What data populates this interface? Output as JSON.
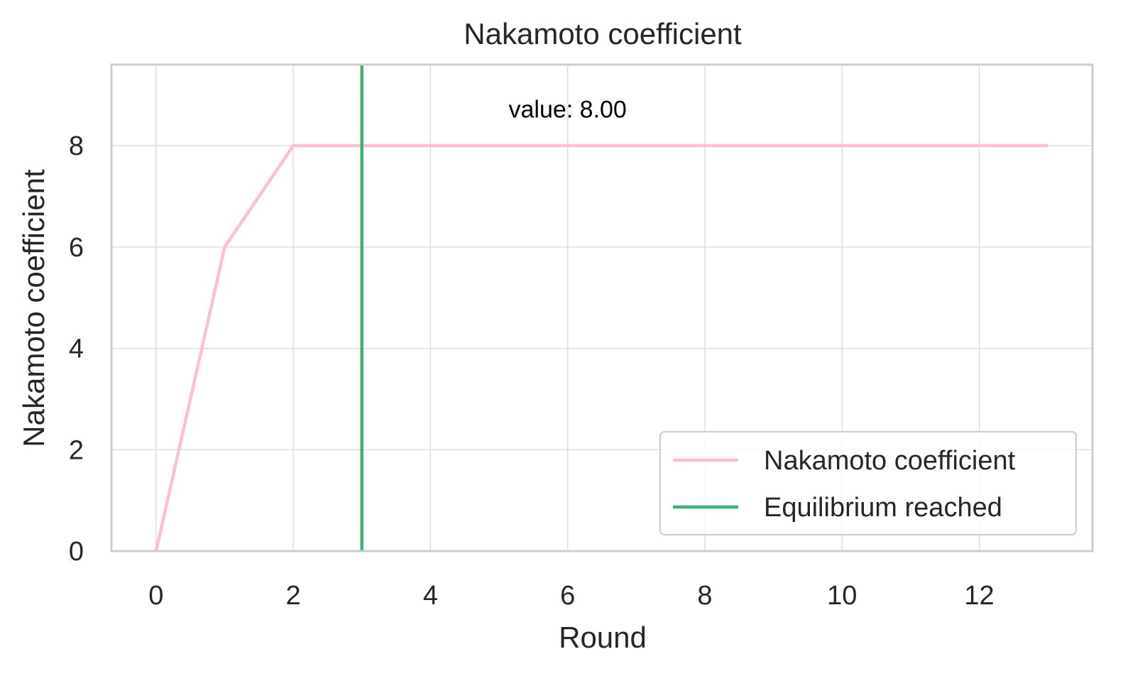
{
  "chart_data": {
    "type": "line",
    "title": "Nakamoto coefficient",
    "xlabel": "Round",
    "ylabel": "Nakamoto coefficient",
    "xlim": [
      -0.65,
      13.65
    ],
    "ylim": [
      0,
      9.6
    ],
    "x_ticks": [
      0,
      2,
      4,
      6,
      8,
      10,
      12
    ],
    "y_ticks": [
      0,
      2,
      4,
      6,
      8
    ],
    "grid": true,
    "legend_position": "lower right",
    "series": [
      {
        "name": "Nakamoto coefficient",
        "color": "#ffc0cb",
        "x": [
          0,
          1,
          2,
          3,
          4,
          5,
          6,
          7,
          8,
          9,
          10,
          11,
          12,
          13
        ],
        "y": [
          0,
          6,
          8,
          8,
          8,
          8,
          8,
          8,
          8,
          8,
          8,
          8,
          8,
          8
        ]
      }
    ],
    "vlines": [
      {
        "name": "Equilibrium reached",
        "x": 3,
        "color": "#3cb371"
      }
    ],
    "annotations": [
      {
        "text": "value: 8.00",
        "x": 6,
        "y": 8.5
      }
    ]
  }
}
